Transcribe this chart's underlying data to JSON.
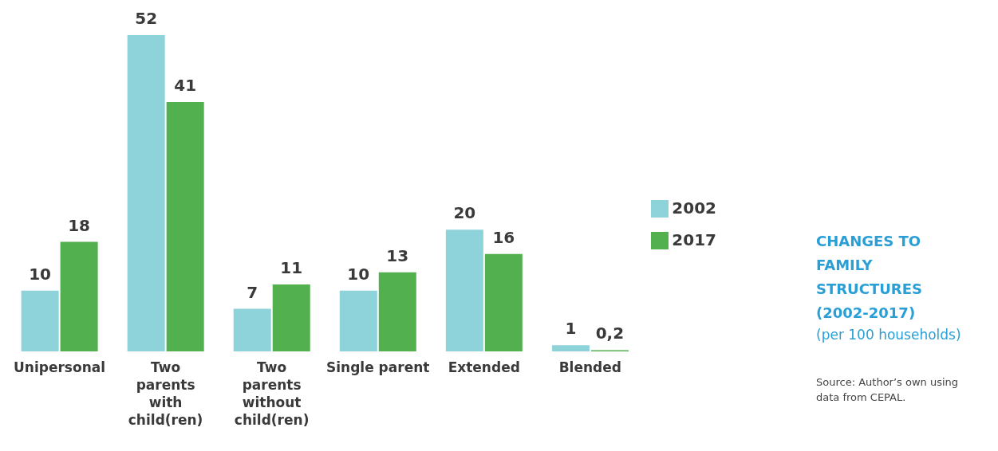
{
  "chart_data": {
    "type": "bar",
    "title": "CHANGES TO FAMILY STRUCTURES (2002-2017)",
    "subtitle": "(per 100 households)",
    "annotations": [
      "Source: Author’s own using data from CEPAL."
    ],
    "categories": [
      "Unipersonal",
      "Two parents with child(ren)",
      "Two parents without child(ren)",
      "Single parent",
      "Extended",
      "Blended"
    ],
    "series": [
      {
        "name": "2002",
        "color": "#8fd3da",
        "values": [
          10,
          52,
          7,
          10,
          20,
          1
        ],
        "value_labels": [
          "10",
          "52",
          "7",
          "10",
          "20",
          "1"
        ]
      },
      {
        "name": "2017",
        "color": "#52b04e",
        "values": [
          18,
          41,
          11,
          13,
          16,
          0.2
        ],
        "value_labels": [
          "18",
          "41",
          "11",
          "13",
          "16",
          "0,2"
        ]
      }
    ],
    "legend": "right",
    "grid": false
  }
}
